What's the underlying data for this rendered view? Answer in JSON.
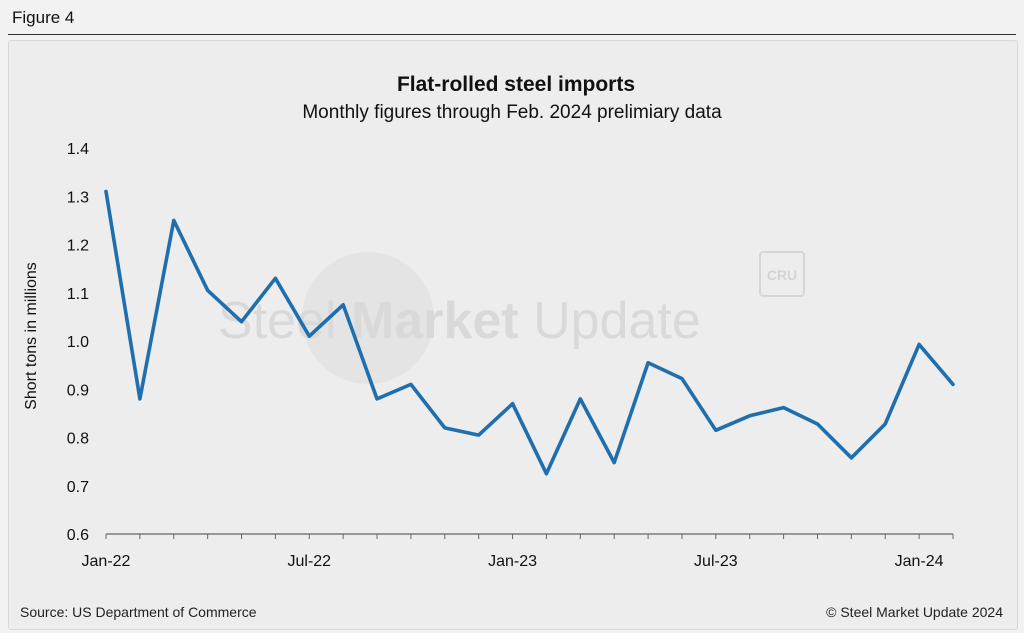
{
  "figure_label": "Figure 4",
  "watermark": {
    "brand_light": "Steel ",
    "brand_bold": "Market",
    "brand_update": " Update",
    "badge": "CRU"
  },
  "footer": {
    "source": "Source: US Department of Commerce",
    "copyright": "© Steel Market Update 2024"
  },
  "colors": {
    "line": "#1f6fae",
    "axis": "#666666",
    "background": "#ededed"
  },
  "chart_data": {
    "type": "line",
    "title": "Flat-rolled steel imports",
    "subtitle": "Monthly figures through Feb. 2024 prelimiary data",
    "xlabel": "",
    "ylabel": "Short tons in millions",
    "ylim": [
      0.6,
      1.4
    ],
    "yticks": [
      "0.6",
      "0.7",
      "0.8",
      "0.9",
      "1.0",
      "1.1",
      "1.2",
      "1.3",
      "1.4"
    ],
    "xticks": [
      {
        "label": "Jan-22",
        "index": 0
      },
      {
        "label": "Jul-22",
        "index": 6
      },
      {
        "label": "Jan-23",
        "index": 12
      },
      {
        "label": "Jul-23",
        "index": 18
      },
      {
        "label": "Jan-24",
        "index": 24
      }
    ],
    "grid": false,
    "series": [
      {
        "name": "Flat-rolled steel imports",
        "x": [
          "Jan-22",
          "Feb-22",
          "Mar-22",
          "Apr-22",
          "May-22",
          "Jun-22",
          "Jul-22",
          "Aug-22",
          "Sep-22",
          "Oct-22",
          "Nov-22",
          "Dec-22",
          "Jan-23",
          "Feb-23",
          "Mar-23",
          "Apr-23",
          "May-23",
          "Jun-23",
          "Jul-23",
          "Aug-23",
          "Sep-23",
          "Oct-23",
          "Nov-23",
          "Dec-23",
          "Jan-24",
          "Feb-24"
        ],
        "values": [
          1.31,
          0.88,
          1.25,
          1.105,
          1.04,
          1.13,
          1.01,
          1.075,
          0.88,
          0.91,
          0.82,
          0.805,
          0.87,
          0.725,
          0.88,
          0.748,
          0.955,
          0.922,
          0.815,
          0.845,
          0.862,
          0.828,
          0.758,
          0.828,
          0.993,
          0.91
        ]
      }
    ]
  }
}
